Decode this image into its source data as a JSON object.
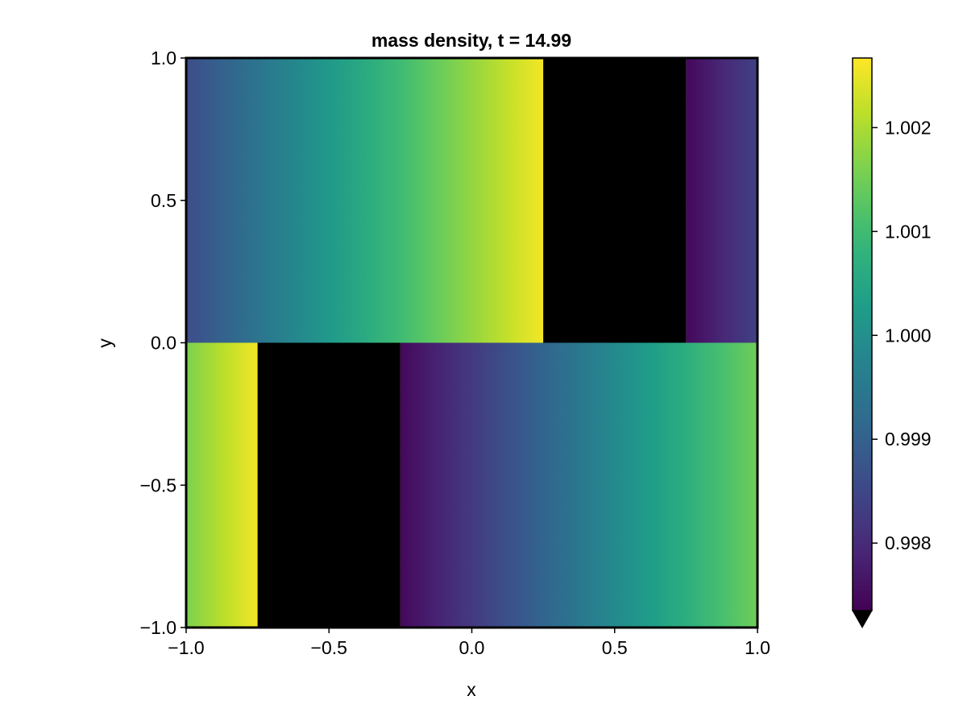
{
  "chart_data": {
    "type": "heatmap",
    "title": "mass density, t = 14.99",
    "xlabel": "x",
    "ylabel": "y",
    "xlim": [
      -1.0,
      1.0
    ],
    "ylim": [
      -1.0,
      1.0
    ],
    "x_ticks": [
      -1.0,
      -0.5,
      0.0,
      0.5,
      1.0
    ],
    "x_tick_labels": [
      "−1.0",
      "−0.5",
      "0.0",
      "0.5",
      "1.0"
    ],
    "y_ticks": [
      -1.0,
      -0.5,
      0.0,
      0.5,
      1.0
    ],
    "y_tick_labels": [
      "−1.0",
      "−0.5",
      "0.0",
      "0.5",
      "1.0"
    ],
    "grid": false,
    "colormap": "viridis",
    "colorbar": {
      "range": [
        0.99735,
        1.00267
      ],
      "ticks": [
        0.998,
        0.999,
        1.0,
        1.001,
        1.002
      ],
      "tick_labels": [
        "0.998",
        "0.999",
        "1.000",
        "1.001",
        "1.002"
      ],
      "extend": "min",
      "extend_color": "#000000"
    },
    "masked_regions": [
      {
        "name": "lower-obstacle",
        "x": [
          -0.75,
          -0.25
        ],
        "y": [
          -1.0,
          0.0
        ],
        "color": "#000000"
      },
      {
        "name": "upper-obstacle",
        "x": [
          0.25,
          0.75
        ],
        "y": [
          0.0,
          1.0
        ],
        "color": "#000000"
      }
    ],
    "field_regions": [
      {
        "name": "upper-band",
        "x": [
          -1.0,
          0.25
        ],
        "y": [
          0.0,
          1.0
        ],
        "left_value": 0.9986,
        "right_value": 1.0026
      },
      {
        "name": "upper-right-strip",
        "x": [
          0.75,
          1.0
        ],
        "y": [
          0.0,
          1.0
        ],
        "left_value": 0.99745,
        "right_value": 0.9984
      },
      {
        "name": "lower-left-strip",
        "x": [
          -1.0,
          -0.75
        ],
        "y": [
          -1.0,
          0.0
        ],
        "left_value": 1.0016,
        "right_value": 1.0026
      },
      {
        "name": "lower-band",
        "x": [
          -0.25,
          1.0
        ],
        "y": [
          -1.0,
          0.0
        ],
        "left_value": 0.99745,
        "right_value": 1.0015
      }
    ]
  }
}
